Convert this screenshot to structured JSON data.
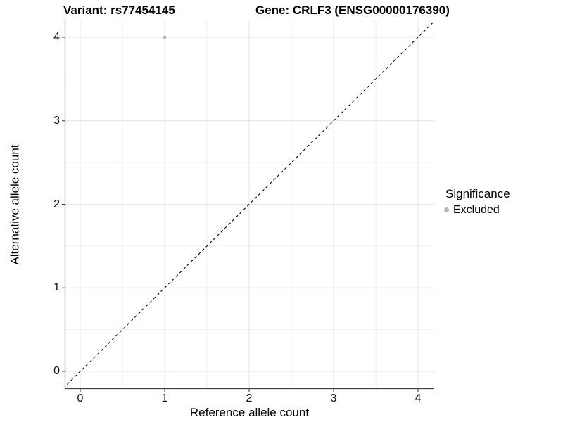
{
  "header": {
    "variant_title": "Variant: rs77454145",
    "gene_title": "Gene: CRLF3 (ENSG00000176390)"
  },
  "axes": {
    "x": {
      "label": "Reference allele count",
      "ticks": [
        "0",
        "1",
        "2",
        "3",
        "4"
      ]
    },
    "y": {
      "label": "Alternative allele count",
      "ticks": [
        "0",
        "1",
        "2",
        "3",
        "4"
      ]
    }
  },
  "legend": {
    "title": "Significance",
    "items": [
      {
        "label": "Excluded",
        "color": "#b5b5b5"
      }
    ]
  },
  "chart_data": {
    "type": "scatter",
    "title": "Variant: rs77454145 — Gene: CRLF3 (ENSG00000176390)",
    "xlabel": "Reference allele count",
    "ylabel": "Alternative allele count",
    "xlim": [
      -0.2,
      4.2
    ],
    "ylim": [
      -0.2,
      4.2
    ],
    "x_ticks": [
      0,
      1,
      2,
      3,
      4
    ],
    "y_ticks": [
      0,
      1,
      2,
      3,
      4
    ],
    "grid": "major and minor (0.5-step) gridlines on white background",
    "legend_position": "right",
    "series": [
      {
        "name": "Excluded",
        "color": "#b5b5b5",
        "points": [
          {
            "x": 1,
            "y": 4
          }
        ]
      }
    ],
    "reference_line": {
      "equation": "y = x",
      "style": "dashed",
      "color": "#000000"
    }
  },
  "colors": {
    "background": "#ffffff",
    "grid_major": "#e4e4e4",
    "grid_minor": "#f2f2f2",
    "axis_line": "#3f3f3f",
    "tick_mark": "#333333",
    "text": "#000000",
    "excluded_point": "#b5b5b5"
  }
}
